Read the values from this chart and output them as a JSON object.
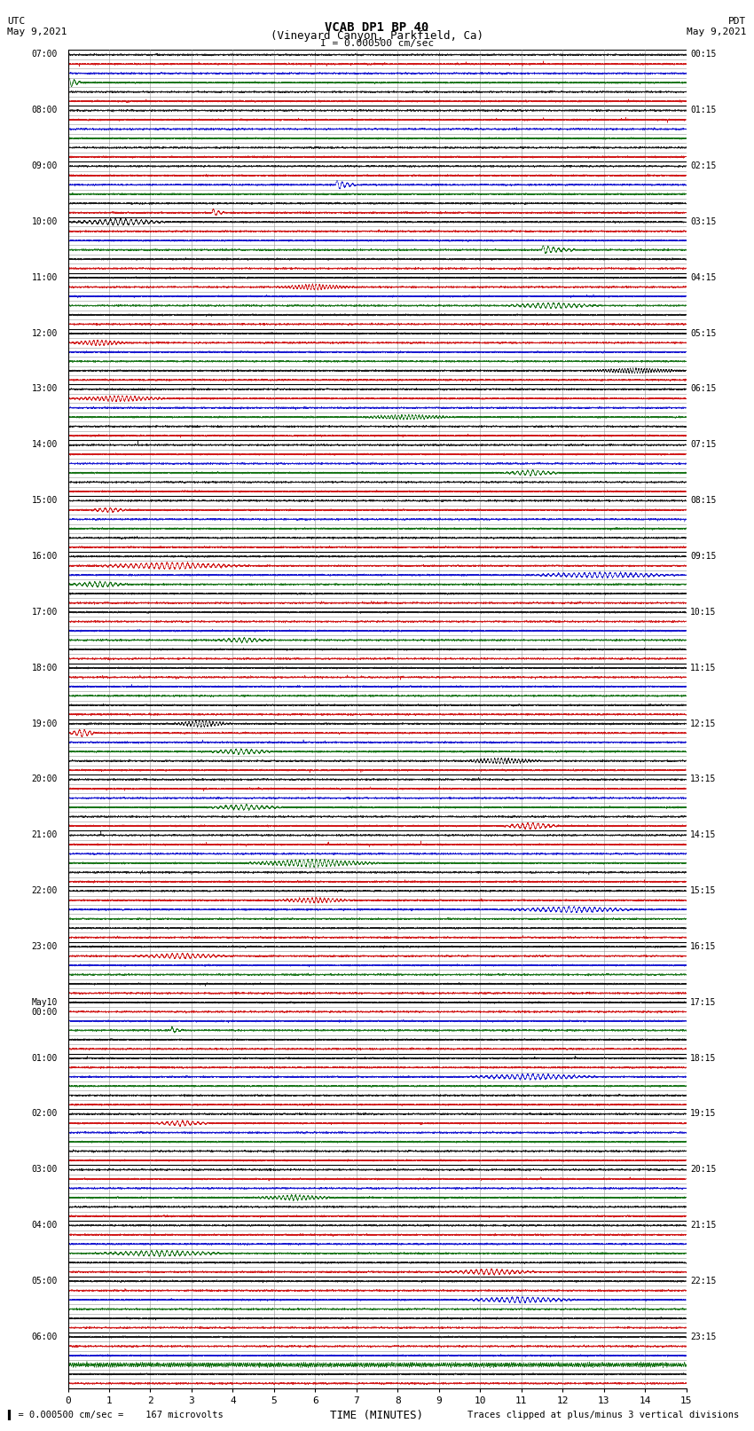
{
  "title_line1": "VCAB DP1 BP 40",
  "title_line2": "(Vineyard Canyon, Parkfield, Ca)",
  "scale_text": "I = 0.000500 cm/sec",
  "left_label": "UTC\nMay 9,2021",
  "right_label": "PDT\nMay 9,2021",
  "xlabel": "TIME (MINUTES)",
  "footer_left": "= 0.000500 cm/sec =    167 microvolts",
  "footer_right": "Traces clipped at plus/minus 3 vertical divisions",
  "xlim": [
    0,
    15
  ],
  "xticks": [
    0,
    1,
    2,
    3,
    4,
    5,
    6,
    7,
    8,
    9,
    10,
    11,
    12,
    13,
    14,
    15
  ],
  "utc_labels": [
    "07:00",
    "08:00",
    "09:00",
    "10:00",
    "11:00",
    "12:00",
    "13:00",
    "14:00",
    "15:00",
    "16:00",
    "17:00",
    "18:00",
    "19:00",
    "20:00",
    "21:00",
    "22:00",
    "23:00",
    "May10\n00:00",
    "01:00",
    "02:00",
    "03:00",
    "04:00",
    "05:00",
    "06:00"
  ],
  "pdt_labels": [
    "00:15",
    "01:15",
    "02:15",
    "03:15",
    "04:15",
    "05:15",
    "06:15",
    "07:15",
    "08:15",
    "09:15",
    "10:15",
    "11:15",
    "12:15",
    "13:15",
    "14:15",
    "15:15",
    "16:15",
    "17:15",
    "18:15",
    "19:15",
    "20:15",
    "21:15",
    "22:15",
    "23:15"
  ],
  "bg_color": "#ffffff",
  "grid_color": "#999999",
  "fig_width": 8.5,
  "fig_height": 16.13,
  "num_hours": 24,
  "subrows_per_hour": 6
}
